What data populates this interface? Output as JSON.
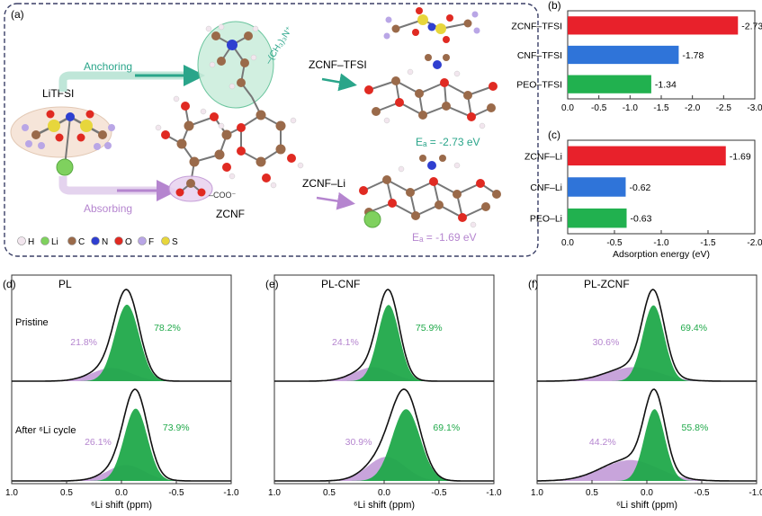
{
  "panel_a": {
    "label": "(a)",
    "salt": "LiTFSI",
    "anchoring": "Anchoring",
    "absorbing": "Absorbing",
    "cnf_label": "ZCNF",
    "quat_group": "–(CH₃)₃N⁺",
    "carboxyl_group": "–COO⁻",
    "complex_tfsi": "ZCNF–TFSI",
    "complex_li": "ZCNF–Li",
    "ea_tfsi": "Eₐ = -2.73 eV",
    "ea_li": "Eₐ = -1.69 eV",
    "legend": [
      {
        "label": "H",
        "color": "#f2e6ee"
      },
      {
        "label": "Li",
        "color": "#7fd15e"
      },
      {
        "label": "C",
        "color": "#9a6a4a"
      },
      {
        "label": "N",
        "color": "#2f3fd0"
      },
      {
        "label": "O",
        "color": "#e02a22"
      },
      {
        "label": "F",
        "color": "#b9a6e6"
      },
      {
        "label": "S",
        "color": "#e7d63c"
      }
    ]
  },
  "chart_data": [
    {
      "type": "bar",
      "label": "(b)",
      "orientation": "horizontal",
      "categories": [
        "ZCNF–TFSI",
        "CNF–TFSI",
        "PEO–TFSI"
      ],
      "values": [
        -2.73,
        -1.78,
        -1.34
      ],
      "value_labels": [
        "-2.73",
        "-1.78",
        "-1.34"
      ],
      "colors": [
        "#e8212b",
        "#2f74d9",
        "#21b14f"
      ],
      "xlim": [
        0.0,
        -3.0
      ],
      "xticks": [
        "0.0",
        "-0.5",
        "-1.0",
        "-1.5",
        "-2.0",
        "-2.5",
        "-3.0"
      ],
      "xlabel": ""
    },
    {
      "type": "bar",
      "label": "(c)",
      "orientation": "horizontal",
      "categories": [
        "ZCNF–Li",
        "CNF–Li",
        "PEO–Li"
      ],
      "values": [
        -1.69,
        -0.62,
        -0.63
      ],
      "value_labels": [
        "-1.69",
        "-0.62",
        "-0.63"
      ],
      "colors": [
        "#e8212b",
        "#2f74d9",
        "#21b14f"
      ],
      "xlim": [
        0.0,
        -2.0
      ],
      "xticks": [
        "0.0",
        "-0.5",
        "-1.0",
        "-1.5",
        "-2.0"
      ],
      "xlabel": "Adsorption energy (eV)"
    },
    {
      "type": "area",
      "label": "(d)",
      "title": "PL",
      "xlabel": "⁶Li shift (ppm)",
      "xlim": [
        1.0,
        -1.0
      ],
      "xticks": [
        "1.0",
        "0.5",
        "0.0",
        "-0.5",
        "-1.0"
      ],
      "row_labels": [
        "Pristine",
        "After ⁶Li cycle"
      ],
      "spectra": [
        {
          "row": "Pristine",
          "fit_components": [
            {
              "percent": "21.8%",
              "center": 0.09,
              "fwhm": 0.42,
              "area_fraction": 0.218,
              "color": "#b585cf"
            },
            {
              "percent": "78.2%",
              "center": -0.05,
              "fwhm": 0.26,
              "area_fraction": 0.782,
              "color": "#20a94a"
            }
          ]
        },
        {
          "row": "After ⁶Li cycle",
          "fit_components": [
            {
              "percent": "26.1%",
              "center": -0.04,
              "fwhm": 0.4,
              "area_fraction": 0.261,
              "color": "#b585cf"
            },
            {
              "percent": "73.9%",
              "center": -0.13,
              "fwhm": 0.25,
              "area_fraction": 0.739,
              "color": "#20a94a"
            }
          ]
        }
      ]
    },
    {
      "type": "area",
      "label": "(e)",
      "title": "PL-CNF",
      "xlabel": "⁶Li shift (ppm)",
      "xlim": [
        1.0,
        -1.0
      ],
      "xticks": [
        "1.0",
        "0.5",
        "0.0",
        "-0.5",
        "-1.0"
      ],
      "row_labels": [
        "",
        ""
      ],
      "spectra": [
        {
          "row": "Pristine",
          "fit_components": [
            {
              "percent": "24.1%",
              "center": 0.1,
              "fwhm": 0.4,
              "area_fraction": 0.241,
              "color": "#b585cf"
            },
            {
              "percent": "75.9%",
              "center": -0.04,
              "fwhm": 0.23,
              "area_fraction": 0.759,
              "color": "#20a94a"
            }
          ]
        },
        {
          "row": "After ⁶Li cycle",
          "fit_components": [
            {
              "percent": "30.9%",
              "center": -0.02,
              "fwhm": 0.4,
              "area_fraction": 0.309,
              "color": "#b585cf"
            },
            {
              "percent": "69.1%",
              "center": -0.2,
              "fwhm": 0.3,
              "area_fraction": 0.691,
              "color": "#20a94a"
            }
          ]
        }
      ]
    },
    {
      "type": "area",
      "label": "(f)",
      "title": "PL-ZCNF",
      "xlabel": "⁶Li shift (ppm)",
      "xlim": [
        1.0,
        -1.0
      ],
      "xticks": [
        "1.0",
        "0.5",
        "0.0",
        "-0.5",
        "-1.0"
      ],
      "row_labels": [
        "",
        ""
      ],
      "spectra": [
        {
          "row": "Pristine",
          "fit_components": [
            {
              "percent": "30.6%",
              "center": 0.12,
              "fwhm": 0.55,
              "area_fraction": 0.306,
              "color": "#b585cf"
            },
            {
              "percent": "69.4%",
              "center": -0.06,
              "fwhm": 0.23,
              "area_fraction": 0.694,
              "color": "#20a94a"
            }
          ]
        },
        {
          "row": "After ⁶Li cycle",
          "fit_components": [
            {
              "percent": "44.2%",
              "center": 0.15,
              "fwhm": 0.6,
              "area_fraction": 0.442,
              "color": "#b585cf"
            },
            {
              "percent": "55.8%",
              "center": -0.07,
              "fwhm": 0.22,
              "area_fraction": 0.558,
              "color": "#20a94a"
            }
          ]
        }
      ]
    }
  ]
}
